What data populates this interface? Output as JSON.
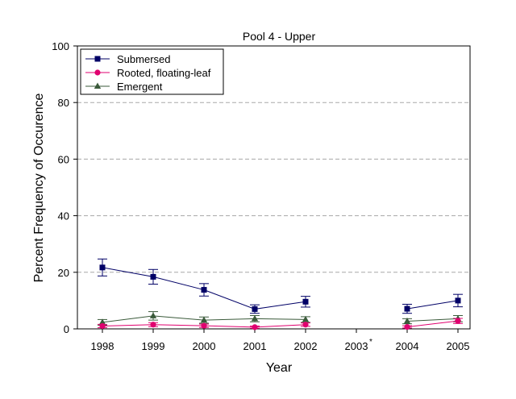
{
  "chart_data": {
    "type": "line",
    "title": "Pool 4 - Upper",
    "xlabel": "Year",
    "ylabel": "Percent Frequency of Occurence",
    "categories": [
      "1998",
      "1999",
      "2000",
      "2001",
      "2002",
      "2003",
      "2004",
      "2005"
    ],
    "category_footnote": {
      "category": "2003",
      "mark": "*"
    },
    "ylim": [
      0,
      100
    ],
    "yticks": [
      "0",
      "20",
      "40",
      "60",
      "80",
      "100"
    ],
    "grid": "horizontal dashed",
    "legend_position": "top-left",
    "series": [
      {
        "name": "Submersed",
        "color": "#000066",
        "marker": "square",
        "values": [
          21.7,
          18.4,
          13.8,
          7.0,
          9.6,
          null,
          7.1,
          10.0
        ],
        "error": [
          3.0,
          2.6,
          2.2,
          1.5,
          1.9,
          null,
          1.6,
          2.2
        ]
      },
      {
        "name": "Rooted, floating-leaf",
        "color": "#e0006f",
        "marker": "circle",
        "values": [
          1.0,
          1.5,
          1.1,
          0.6,
          1.5,
          null,
          0.7,
          2.8
        ],
        "error": [
          0.6,
          0.7,
          0.6,
          0.4,
          0.6,
          null,
          0.4,
          0.9
        ]
      },
      {
        "name": "Emergent",
        "color": "#3a5a3a",
        "marker": "triangle",
        "values": [
          2.3,
          4.6,
          3.1,
          3.6,
          3.3,
          null,
          2.7,
          3.6
        ],
        "error": [
          1.0,
          1.5,
          1.1,
          1.1,
          1.0,
          null,
          0.9,
          1.1
        ]
      }
    ]
  }
}
